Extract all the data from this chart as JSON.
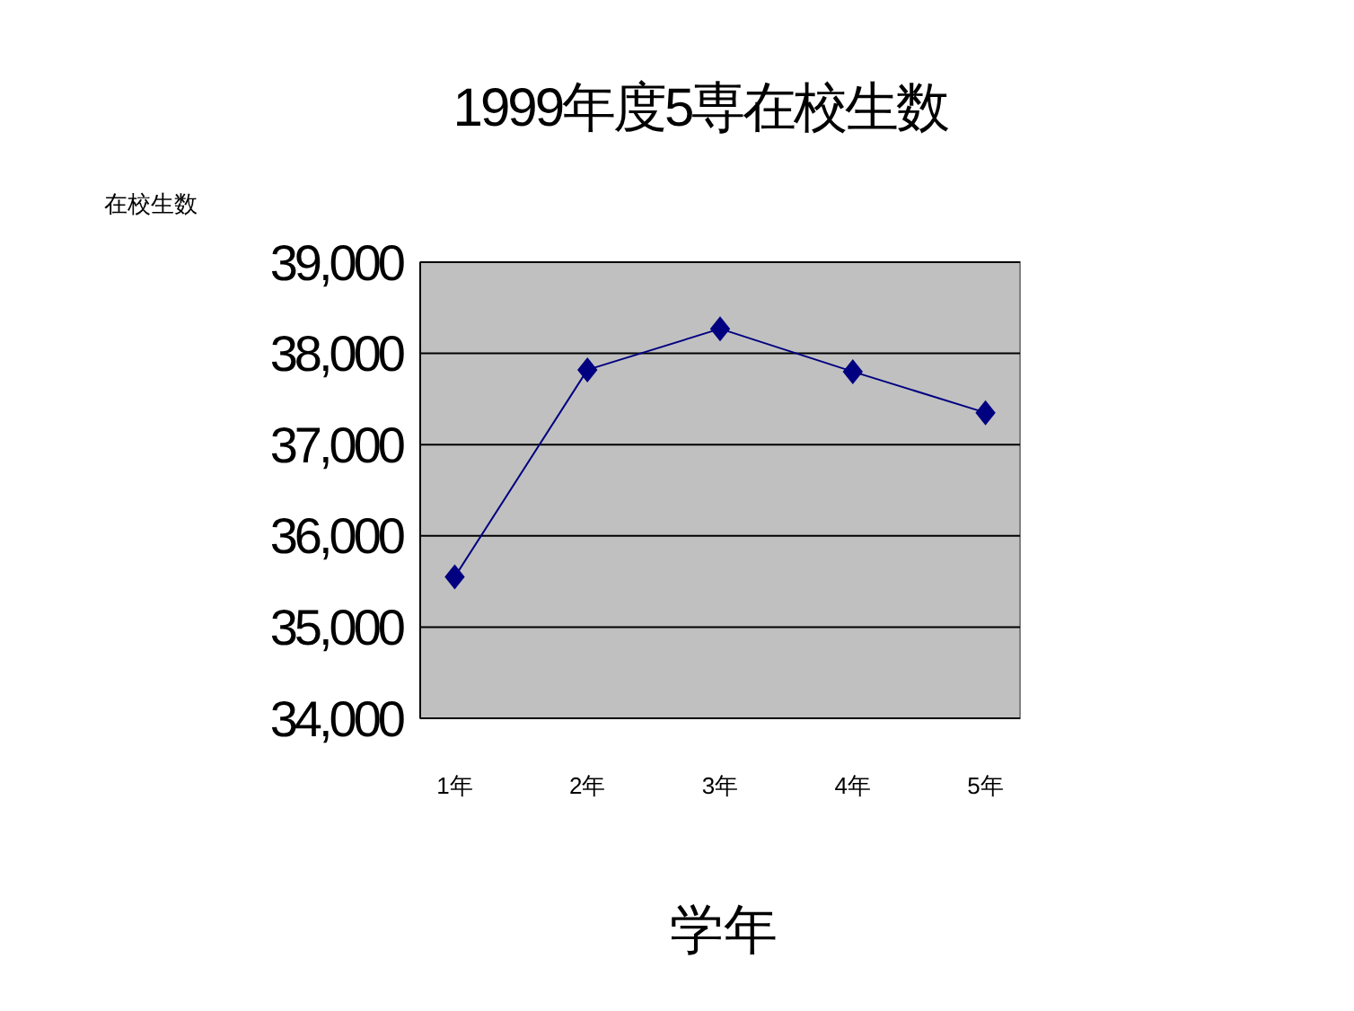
{
  "chart_data": {
    "type": "line",
    "title": "1999年度5専在校生数",
    "xlabel": "学年",
    "ylabel": "在校生数",
    "categories": [
      "1年",
      "2年",
      "3年",
      "4年",
      "5年"
    ],
    "series": [
      {
        "color": "#000080",
        "values": [
          35550,
          37820,
          38270,
          37800,
          37350
        ]
      }
    ],
    "ylim": [
      34000,
      39000
    ],
    "yticks": [
      {
        "value": 34000,
        "label": "34,000"
      },
      {
        "value": 35000,
        "label": "35,000"
      },
      {
        "value": 36000,
        "label": "36,000"
      },
      {
        "value": 37000,
        "label": "37,000"
      },
      {
        "value": 38000,
        "label": "38,000"
      },
      {
        "value": 39000,
        "label": "39,000"
      }
    ],
    "grid": "y",
    "marker": "diamond",
    "line_style": "solid"
  }
}
